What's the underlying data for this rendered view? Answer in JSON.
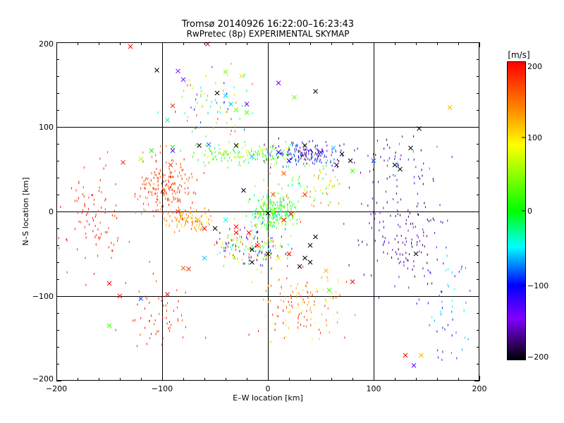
{
  "chart_data": {
    "type": "scatter",
    "title": "Tromsø 20140926 16:22:00–16:23:43",
    "subtitle": "RwPretec (8p) EXPERIMENTAL SKYMAP",
    "xlabel": "E–W location [km]",
    "ylabel": "N–S location [km]",
    "xlim": [
      -200,
      200
    ],
    "ylim": [
      -200,
      200
    ],
    "xticks": [
      "−200",
      "−100",
      "0",
      "100",
      "200"
    ],
    "yticks": [
      "−200",
      "−100",
      "0",
      "100",
      "200"
    ],
    "grid": true,
    "markers": [
      "dot",
      "cross"
    ],
    "colorbar": {
      "unit": "[m/s]",
      "range": [
        -200,
        200
      ],
      "ticks": [
        "200",
        "100",
        "0",
        "−100",
        "−200"
      ],
      "colormap": [
        "#000000",
        "#8000ff",
        "#0000ff",
        "#00ffff",
        "#00ff00",
        "#ffff00",
        "#ff8000",
        "#ff0000"
      ]
    },
    "series": [
      {
        "marker": "cross",
        "points": [
          [
            -130,
            195,
            200
          ],
          [
            -57,
            198,
            200
          ],
          [
            -105,
            167,
            -200
          ],
          [
            -85,
            166,
            -140
          ],
          [
            -80,
            156,
            -130
          ],
          [
            -48,
            140,
            -200
          ],
          [
            -40,
            137,
            -60
          ],
          [
            -20,
            127,
            -130
          ],
          [
            -90,
            125,
            180
          ],
          [
            -95,
            108,
            -30
          ],
          [
            -25,
            160,
            100
          ],
          [
            -40,
            165,
            40
          ],
          [
            -35,
            127,
            -60
          ],
          [
            -30,
            120,
            40
          ],
          [
            -20,
            117,
            30
          ],
          [
            10,
            152,
            -150
          ],
          [
            25,
            135,
            40
          ],
          [
            45,
            142,
            -200
          ],
          [
            172,
            123,
            120
          ],
          [
            143,
            98,
            -200
          ],
          [
            -56,
            79,
            -80
          ],
          [
            -65,
            78,
            -200
          ],
          [
            -90,
            76,
            0
          ],
          [
            -110,
            72,
            0
          ],
          [
            -90,
            72,
            -130
          ],
          [
            -120,
            62,
            60
          ],
          [
            -137,
            58,
            180
          ],
          [
            -92,
            55,
            180
          ],
          [
            -30,
            78,
            -200
          ],
          [
            -40,
            70,
            50
          ],
          [
            -15,
            65,
            -60
          ],
          [
            10,
            70,
            -100
          ],
          [
            20,
            60,
            -100
          ],
          [
            35,
            78,
            -200
          ],
          [
            50,
            70,
            -130
          ],
          [
            62,
            75,
            -60
          ],
          [
            70,
            68,
            -200
          ],
          [
            78,
            60,
            -200
          ],
          [
            65,
            55,
            -180
          ],
          [
            80,
            48,
            20
          ],
          [
            100,
            60,
            -80
          ],
          [
            120,
            55,
            -200
          ],
          [
            125,
            50,
            -200
          ],
          [
            135,
            75,
            -200
          ],
          [
            -23,
            25,
            -200
          ],
          [
            5,
            20,
            160
          ],
          [
            15,
            45,
            160
          ],
          [
            35,
            20,
            180
          ],
          [
            -85,
            0,
            200
          ],
          [
            -60,
            -20,
            200
          ],
          [
            -66,
            -10,
            120
          ],
          [
            -40,
            -10,
            -50
          ],
          [
            -50,
            -20,
            -200
          ],
          [
            -30,
            -18,
            200
          ],
          [
            -30,
            -25,
            200
          ],
          [
            -18,
            -25,
            200
          ],
          [
            0,
            -2,
            -200
          ],
          [
            5,
            0,
            60
          ],
          [
            8,
            -5,
            -50
          ],
          [
            15,
            -10,
            200
          ],
          [
            22,
            -3,
            200
          ],
          [
            -10,
            -40,
            200
          ],
          [
            -15,
            -45,
            -200
          ],
          [
            -60,
            -55,
            -60
          ],
          [
            0,
            -50,
            -200
          ],
          [
            20,
            -50,
            200
          ],
          [
            35,
            -55,
            -200
          ],
          [
            40,
            -40,
            -200
          ],
          [
            45,
            -30,
            -200
          ],
          [
            -75,
            -68,
            180
          ],
          [
            -15,
            -60,
            -200
          ],
          [
            10,
            -55,
            100
          ],
          [
            30,
            -65,
            -200
          ],
          [
            40,
            -60,
            -200
          ],
          [
            55,
            -70,
            120
          ],
          [
            -95,
            -98,
            200
          ],
          [
            -80,
            -67,
            160
          ],
          [
            -140,
            -100,
            200
          ],
          [
            -150,
            -85,
            200
          ],
          [
            -150,
            -135,
            20
          ],
          [
            -120,
            -103,
            -80
          ],
          [
            58,
            -93,
            20
          ],
          [
            80,
            -83,
            200
          ],
          [
            130,
            -170,
            200
          ],
          [
            138,
            -182,
            -130
          ],
          [
            145,
            -170,
            120
          ],
          [
            140,
            -50,
            -200
          ]
        ]
      },
      {
        "marker": "dot",
        "clusters": [
          {
            "cx": -95,
            "cy": 30,
            "rx": 28,
            "ry": 40,
            "n": 200,
            "c": [
              140,
              200
            ]
          },
          {
            "cx": -165,
            "cy": -10,
            "rx": 30,
            "ry": 80,
            "n": 90,
            "c": [
              170,
              200
            ]
          },
          {
            "cx": -75,
            "cy": -10,
            "rx": 24,
            "ry": 14,
            "n": 100,
            "c": [
              80,
              180
            ]
          },
          {
            "cx": -20,
            "cy": 68,
            "rx": 58,
            "ry": 14,
            "n": 160,
            "c": [
              -40,
              100
            ]
          },
          {
            "cx": 35,
            "cy": 68,
            "rx": 40,
            "ry": 16,
            "n": 150,
            "c": [
              -200,
              -60
            ]
          },
          {
            "cx": 5,
            "cy": 0,
            "rx": 25,
            "ry": 22,
            "n": 220,
            "c": [
              -40,
              60
            ]
          },
          {
            "cx": -15,
            "cy": -40,
            "rx": 45,
            "ry": 30,
            "n": 170,
            "c": [
              -200,
              200
            ]
          },
          {
            "cx": 30,
            "cy": -110,
            "rx": 45,
            "ry": 50,
            "n": 140,
            "c": [
              80,
              200
            ]
          },
          {
            "cx": 130,
            "cy": -30,
            "rx": 50,
            "ry": 60,
            "n": 140,
            "c": [
              -200,
              -110
            ]
          },
          {
            "cx": 115,
            "cy": 60,
            "rx": 60,
            "ry": 30,
            "n": 60,
            "c": [
              -200,
              -70
            ]
          },
          {
            "cx": -50,
            "cy": 125,
            "rx": 50,
            "ry": 50,
            "n": 80,
            "c": [
              -150,
              200
            ]
          },
          {
            "cx": 170,
            "cy": -110,
            "rx": 25,
            "ry": 80,
            "n": 50,
            "c": [
              -130,
              -40
            ]
          },
          {
            "cx": 40,
            "cy": 30,
            "rx": 50,
            "ry": 30,
            "n": 80,
            "c": [
              -40,
              160
            ]
          },
          {
            "cx": -100,
            "cy": -120,
            "rx": 40,
            "ry": 60,
            "n": 60,
            "c": [
              160,
              200
            ]
          }
        ]
      }
    ]
  }
}
